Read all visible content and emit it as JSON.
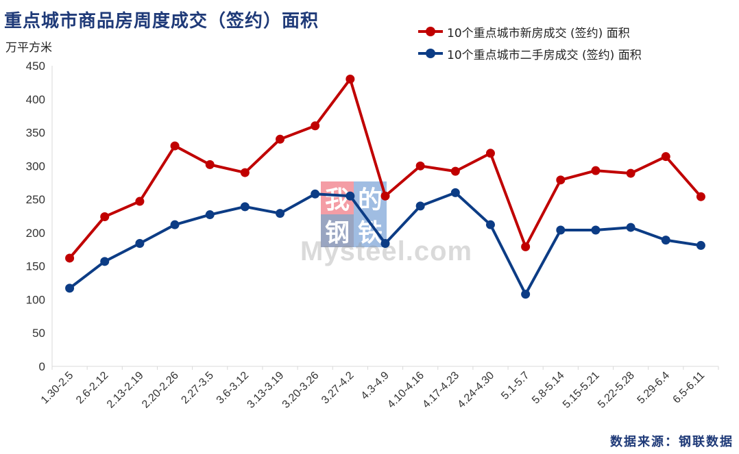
{
  "title": "重点城市商品房周度成交（签约）面积",
  "unit": "万平方米",
  "source": "数据来源：钢联数据",
  "watermark": {
    "cn": [
      "我",
      "的",
      "钢",
      "铁"
    ],
    "en": "Mysteel.com"
  },
  "colors": {
    "title": "#1f3a78",
    "new": "#c00000",
    "second": "#0c3c85",
    "axis": "#d9d9d9"
  },
  "chart_data": {
    "type": "line",
    "categories": [
      "1.30-2.5",
      "2.6-2.12",
      "2.13-2.19",
      "2.20-2.26",
      "2.27-3.5",
      "3.6-3.12",
      "3.13-3.19",
      "3.20-3.26",
      "3.27-4.2",
      "4.3-4.9",
      "4.10-4.16",
      "4.17-4.23",
      "4.24-4.30",
      "5.1-5.7",
      "5.8-5.14",
      "5.15-5.21",
      "5.22-5.28",
      "5.29-6.4",
      "6.5-6.11"
    ],
    "series": [
      {
        "name": "10个重点城市新房成交 (签约) 面积",
        "color": "#c00000",
        "values": [
          162,
          224,
          247,
          330,
          302,
          290,
          340,
          360,
          430,
          255,
          300,
          292,
          319,
          179,
          279,
          293,
          289,
          314,
          254
        ]
      },
      {
        "name": "10个重点城市二手房成交 (签约) 面积",
        "color": "#0c3c85",
        "values": [
          117,
          157,
          184,
          212,
          227,
          239,
          229,
          258,
          255,
          184,
          240,
          260,
          212,
          108,
          204,
          204,
          208,
          189,
          181
        ]
      }
    ],
    "ylim": [
      0,
      450
    ],
    "yticks": [
      0,
      50,
      100,
      150,
      200,
      250,
      300,
      350,
      400,
      450
    ],
    "grid": false,
    "legend": "top-right"
  }
}
